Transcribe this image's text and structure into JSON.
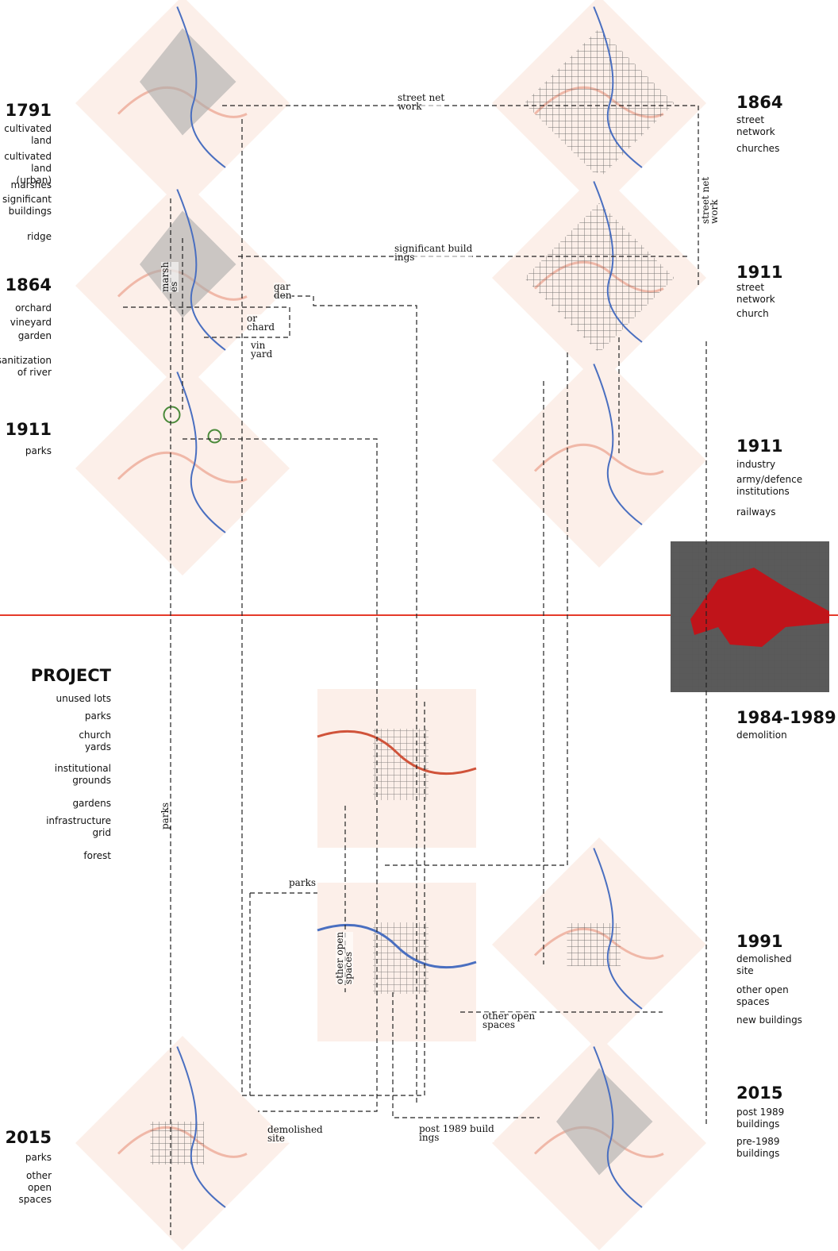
{
  "left_legends": [
    {
      "year": "1791",
      "items": [
        "cultivated\nland",
        "cultivated\nland (urban)",
        "marshes",
        "significant\nbuildings",
        "ridge"
      ]
    },
    {
      "year": "1864",
      "items": [
        "orchard",
        "vineyard",
        "garden",
        "sanitization\nof river"
      ]
    },
    {
      "year": "1911",
      "items": [
        "parks"
      ]
    },
    {
      "year": "PROJECT",
      "items": [
        "unused lots",
        "parks",
        "church\nyards",
        "institutional\ngrounds",
        "gardens",
        "infrastructure\ngrid",
        "forest"
      ]
    },
    {
      "year": "2015",
      "items": [
        "parks",
        "other open\nspaces"
      ]
    }
  ],
  "right_legends": [
    {
      "year": "1864",
      "items": [
        "street\nnetwork",
        "churches"
      ]
    },
    {
      "year": "1911",
      "items": [
        "street\nnetwork",
        "church"
      ]
    },
    {
      "year": "1911",
      "items": [
        "industry",
        "army/defence\ninstitutions",
        "railways"
      ]
    },
    {
      "year": "1984-1989",
      "items": [
        "demolition"
      ]
    },
    {
      "year": "1991",
      "items": [
        "demolished\nsite",
        "other open\nspaces",
        "new buildings"
      ]
    },
    {
      "year": "2015",
      "items": [
        "post 1989\nbuildings",
        "pre-1989\nbuildings"
      ]
    }
  ],
  "connectors": [
    "street net\nwork",
    "street net\nwork",
    "significant build\nings",
    "marsh\nes",
    "gar\nden",
    "or\nchard",
    "vin\nyard",
    "parks",
    "parks",
    "other open\nspaces",
    "other open\nspaces",
    "demolished\nsite",
    "post 1989 build\nings"
  ]
}
